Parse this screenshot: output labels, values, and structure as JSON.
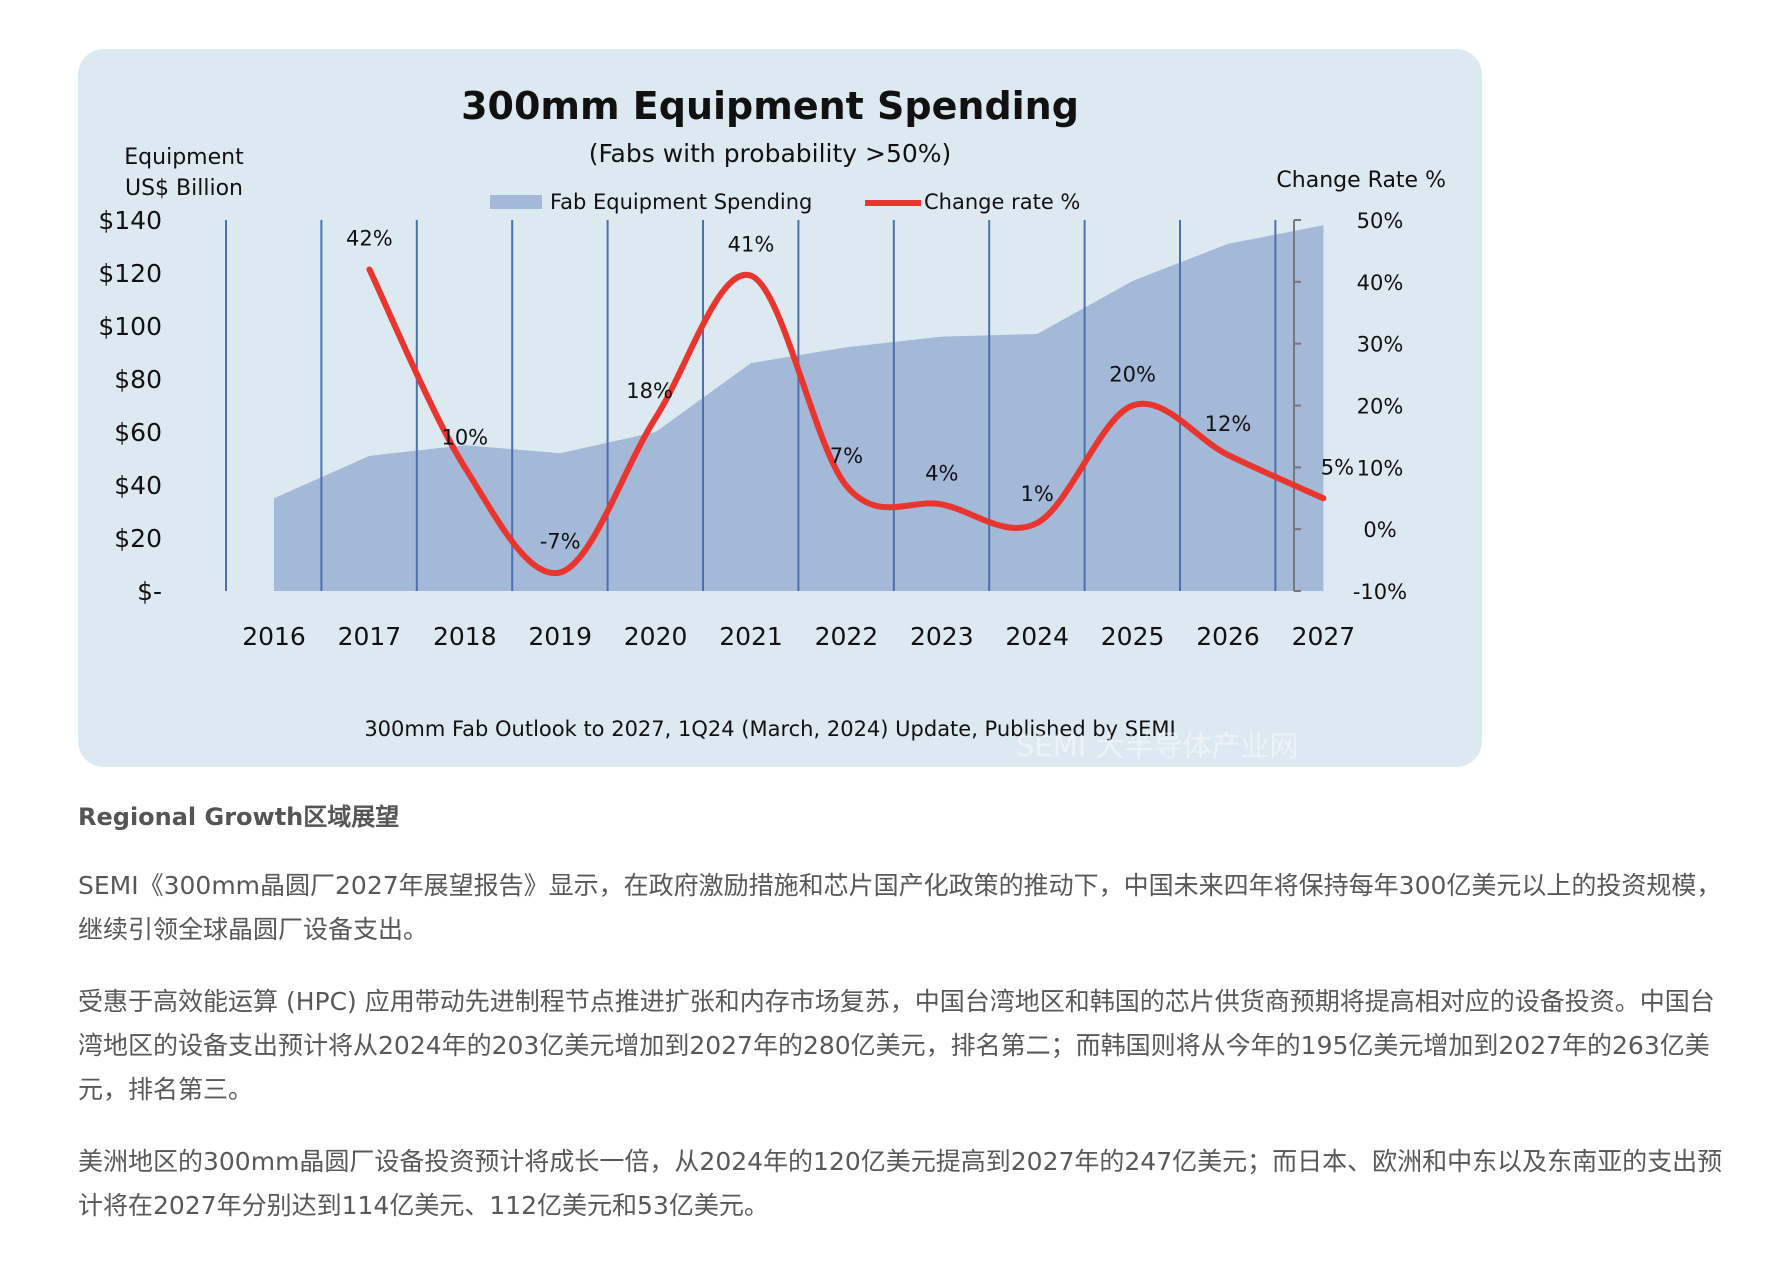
{
  "chart_data": {
    "type": "area+line",
    "title": "300mm Equipment Spending",
    "subtitle": "(Fabs with probability >50%)",
    "ylabel_left": [
      "Equipment",
      "US$ Billion"
    ],
    "ylabel_right": "Change Rate %",
    "categories": [
      "2016",
      "2017",
      "2018",
      "2019",
      "2020",
      "2021",
      "2022",
      "2023",
      "2024",
      "2025",
      "2026",
      "2027"
    ],
    "left_axis": {
      "ylim": [
        0,
        140
      ],
      "ticks": [
        0,
        20,
        40,
        60,
        80,
        100,
        120,
        140
      ],
      "tick_labels": [
        "$-",
        "$20",
        "$40",
        "$60",
        "$80",
        "$100",
        "$120",
        "$140"
      ]
    },
    "right_axis": {
      "ylim": [
        -10,
        50
      ],
      "ticks": [
        -10,
        0,
        10,
        20,
        30,
        40,
        50
      ],
      "tick_labels": [
        "-10%",
        "0%",
        "10%",
        "20%",
        "30%",
        "40%",
        "50%"
      ]
    },
    "series": [
      {
        "name": "Fab Equipment Spending",
        "type": "area",
        "axis": "left",
        "color": "#a4b8d8",
        "values": [
          35,
          51,
          55,
          52,
          60,
          86,
          92,
          96,
          97,
          117,
          131,
          138
        ]
      },
      {
        "name": "Change rate %",
        "type": "line",
        "axis": "right",
        "color": "#e8352d",
        "x": [
          "2017",
          "2018",
          "2019",
          "2020",
          "2021",
          "2022",
          "2023",
          "2024",
          "2025",
          "2026",
          "2027"
        ],
        "values": [
          42,
          10,
          -7,
          18,
          41,
          7,
          4,
          1,
          20,
          12,
          5
        ],
        "data_labels": [
          "42%",
          "10%",
          "-7%",
          "18%",
          "41%",
          "7%",
          "4%",
          "1%",
          "20%",
          "12%",
          "5%"
        ]
      }
    ],
    "legend": "top",
    "grid": "vertical",
    "source": "300mm Fab Outlook to 2027, 1Q24 (March, 2024) Update, Published by SEMI",
    "watermark": "SEMI 大半导体产业网"
  },
  "article": {
    "heading": "Regional Growth区域展望",
    "paragraphs": [
      "SEMI《300mm晶圆厂2027年展望报告》显示，在政府激励措施和芯片国产化政策的推动下，中国未来四年将保持每年300亿美元以上的投资规模，继续引领全球晶圆厂设备支出。",
      "受惠于高效能运算 (HPC) 应用带动先进制程节点推进扩张和内存市场复苏，中国台湾地区和韩国的芯片供货商预期将提高相对应的设备投资。中国台湾地区的设备支出预计将从2024年的203亿美元增加到2027年的280亿美元，排名第二；而韩国则将从今年的195亿美元增加到2027年的263亿美元，排名第三。",
      "美洲地区的300mm晶圆厂设备投资预计将成长一倍，从2024年的120亿美元提高到2027年的247亿美元；而日本、欧洲和中东以及东南亚的支出预计将在2027年分别达到114亿美元、112亿美元和53亿美元。"
    ]
  }
}
